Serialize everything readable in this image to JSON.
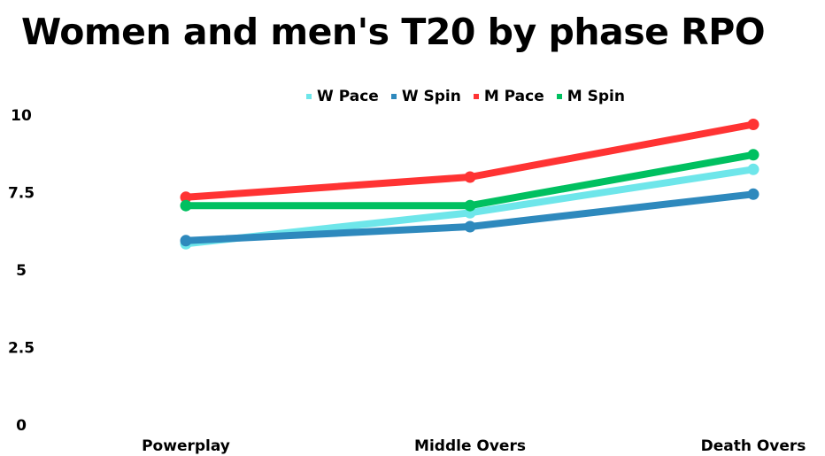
{
  "chart_data": {
    "type": "line",
    "title": "Women and men's T20 by phase RPO",
    "xlabel": "",
    "ylabel": "",
    "categories": [
      "Powerplay",
      "Middle Overs",
      "Death Overs"
    ],
    "ylim": [
      0,
      10
    ],
    "yticks": [
      "0",
      "2.5",
      "5",
      "7.5",
      "10"
    ],
    "ytick_values": [
      0,
      2.5,
      5,
      7.5,
      10
    ],
    "grid": false,
    "legend_position": "top",
    "series": [
      {
        "name": "W Pace",
        "color": "#6ee6ea",
        "values": [
          5.85,
          6.85,
          8.25
        ]
      },
      {
        "name": "W Spin",
        "color": "#2e89bd",
        "values": [
          5.95,
          6.4,
          7.45
        ]
      },
      {
        "name": "M Pace",
        "color": "#ff3333",
        "values": [
          7.35,
          8.0,
          9.7
        ]
      },
      {
        "name": "M Spin",
        "color": "#00c060",
        "values": [
          7.08,
          7.08,
          8.72
        ]
      }
    ]
  }
}
